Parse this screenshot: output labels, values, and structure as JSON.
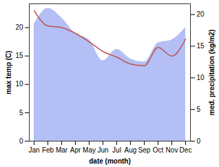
{
  "chart_data": {
    "type": "line",
    "categories": [
      "Jan",
      "Feb",
      "Mar",
      "Apr",
      "May",
      "Jun",
      "Jul",
      "Aug",
      "Sep",
      "Oct",
      "Nov",
      "Dec"
    ],
    "x_label": "date (month)",
    "y_label": "max temp (C)",
    "y2_label": "med. precipitation (kg/m2)",
    "ylim": [
      0,
      24.2
    ],
    "yticks": [
      0,
      5,
      10,
      15,
      20
    ],
    "y2lim": [
      0,
      21.7
    ],
    "y2ticks": [
      0,
      5,
      10,
      15,
      20
    ],
    "series": [
      {
        "name": "med. precipitation",
        "type": "area",
        "axis": "y2",
        "color": "#b3bff5",
        "values": [
          18.5,
          21,
          19.5,
          17,
          16,
          12.7,
          14.5,
          13,
          12.5,
          15.5,
          16,
          18
        ]
      },
      {
        "name": "max temp",
        "type": "line",
        "axis": "y",
        "color": "#c0504d",
        "values": [
          23,
          20.3,
          20,
          19,
          17.5,
          15.8,
          14.8,
          13.6,
          13.3,
          16.5,
          15,
          18
        ]
      }
    ]
  }
}
